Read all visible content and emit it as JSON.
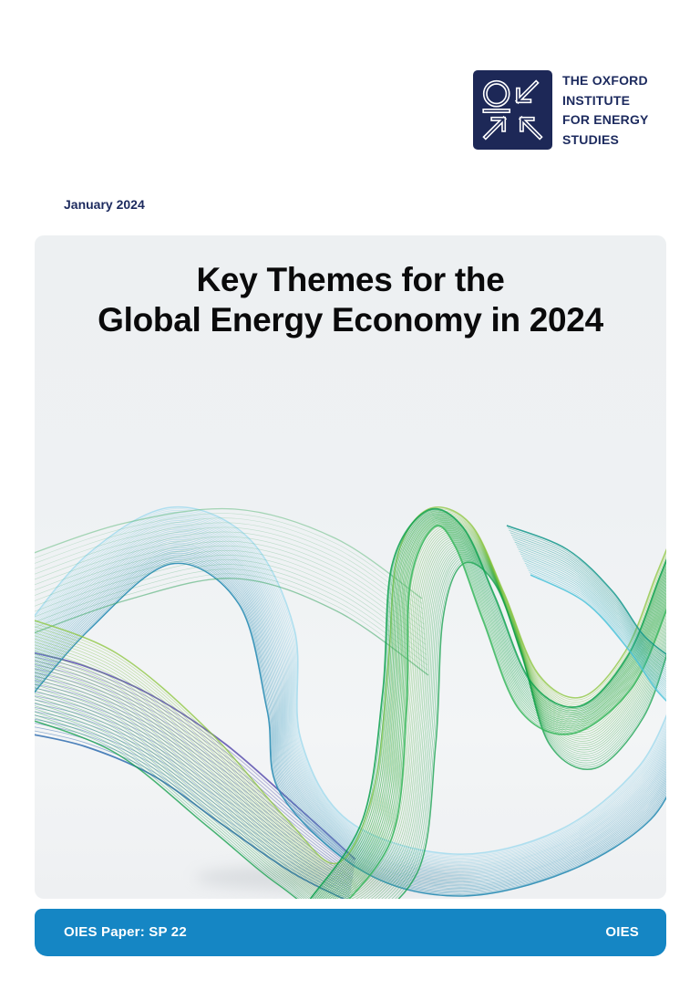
{
  "page": {
    "date": "January 2024"
  },
  "logo": {
    "icon": "oies-logo-mark",
    "org_lines": [
      "THE OXFORD",
      "INSTITUTE",
      "FOR ENERGY",
      "STUDIES"
    ]
  },
  "title": {
    "line1": "Key Themes for the",
    "line2": "Global Energy Economy in 2024"
  },
  "footer": {
    "left": "OIES Paper: SP 22",
    "right": "OIES"
  },
  "colors": {
    "navy": "#1c2a5e",
    "logo_square": "#1d2857",
    "footer_blue": "#1586c4",
    "title_black": "#0a0a0b",
    "card_bg_top": "#edf0f2",
    "card_bg_bottom": "#eef0f2"
  },
  "artwork": {
    "description": "abstract flowing line ribbons",
    "palette": {
      "purple": [
        "#5a4fae",
        "#2f6cb0"
      ],
      "cyan": [
        "#a9ddee",
        "#2e8fb5"
      ],
      "green_veil": [
        "#5bb878",
        "#2fa05a"
      ],
      "green_main": [
        "#8cc63c",
        "#12a04b"
      ],
      "green_bright": [
        "#0ca14e",
        "#35b65a"
      ],
      "teal_right": [
        "#11968a",
        "#49c2d9"
      ]
    }
  }
}
